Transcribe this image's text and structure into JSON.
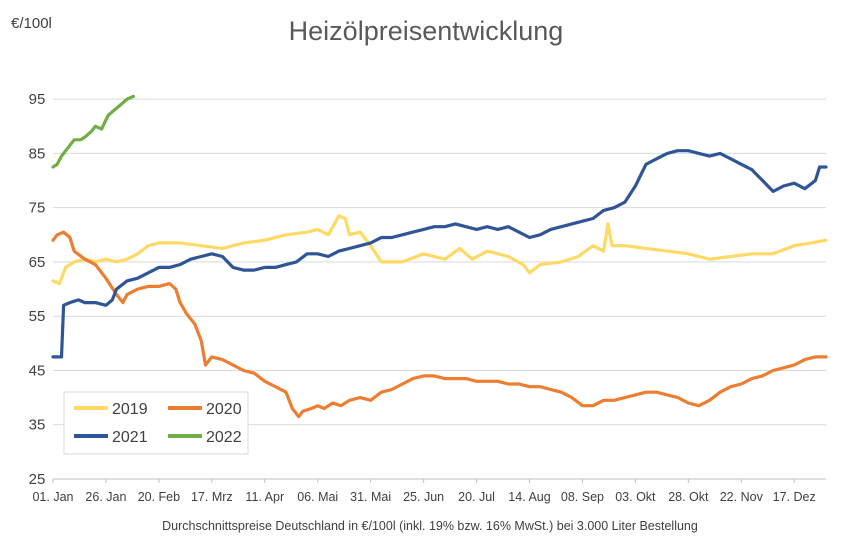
{
  "chart_data": {
    "type": "line",
    "title": "Heizölpreisentwicklung",
    "ylabel": "€/100l",
    "xlabel": "Durchschnittspreise Deutschland in €/100l (inkl. 19% bzw. 16%  MwSt.) bei 3.000 Liter Bestellung",
    "ylim": [
      25,
      100
    ],
    "yticks": [
      25,
      35,
      45,
      55,
      65,
      75,
      85,
      95
    ],
    "xlim": [
      0,
      365
    ],
    "xticks": [
      {
        "label": "01. Jan",
        "day": 0
      },
      {
        "label": "26. Jan",
        "day": 25
      },
      {
        "label": "20. Feb",
        "day": 50
      },
      {
        "label": "17. Mrz",
        "day": 75
      },
      {
        "label": "11. Apr",
        "day": 100
      },
      {
        "label": "06. Mai",
        "day": 125
      },
      {
        "label": "31. Mai",
        "day": 150
      },
      {
        "label": "25. Jun",
        "day": 175
      },
      {
        "label": "20. Jul",
        "day": 200
      },
      {
        "label": "14. Aug",
        "day": 225
      },
      {
        "label": "08. Sep",
        "day": 250
      },
      {
        "label": "03. Okt",
        "day": 275
      },
      {
        "label": "28. Okt",
        "day": 300
      },
      {
        "label": "22. Nov",
        "day": 325
      },
      {
        "label": "17. Dez",
        "day": 350
      }
    ],
    "grid": true,
    "legend": "bottom-left",
    "series": [
      {
        "name": "2019",
        "color": "#FFD966",
        "points": [
          [
            0,
            61.5
          ],
          [
            3,
            61
          ],
          [
            6,
            64
          ],
          [
            10,
            65
          ],
          [
            15,
            65.5
          ],
          [
            20,
            65
          ],
          [
            25,
            65.5
          ],
          [
            30,
            65
          ],
          [
            35,
            65.5
          ],
          [
            40,
            66.5
          ],
          [
            45,
            68
          ],
          [
            50,
            68.5
          ],
          [
            60,
            68.5
          ],
          [
            70,
            68
          ],
          [
            80,
            67.5
          ],
          [
            90,
            68.5
          ],
          [
            100,
            69
          ],
          [
            110,
            70
          ],
          [
            120,
            70.5
          ],
          [
            125,
            71
          ],
          [
            130,
            70
          ],
          [
            135,
            73.5
          ],
          [
            138,
            73
          ],
          [
            140,
            70
          ],
          [
            145,
            70.5
          ],
          [
            150,
            68
          ],
          [
            155,
            65
          ],
          [
            165,
            65
          ],
          [
            175,
            66.5
          ],
          [
            185,
            65.5
          ],
          [
            192,
            67.5
          ],
          [
            198,
            65.5
          ],
          [
            205,
            67
          ],
          [
            215,
            66
          ],
          [
            222,
            64.5
          ],
          [
            225,
            63
          ],
          [
            230,
            64.5
          ],
          [
            240,
            65
          ],
          [
            248,
            66
          ],
          [
            255,
            68
          ],
          [
            260,
            67
          ],
          [
            262,
            72
          ],
          [
            264,
            68
          ],
          [
            270,
            68
          ],
          [
            280,
            67.5
          ],
          [
            290,
            67
          ],
          [
            300,
            66.5
          ],
          [
            310,
            65.5
          ],
          [
            320,
            66
          ],
          [
            330,
            66.5
          ],
          [
            340,
            66.5
          ],
          [
            350,
            68
          ],
          [
            358,
            68.5
          ],
          [
            365,
            69
          ]
        ]
      },
      {
        "name": "2020",
        "color": "#ED7D31",
        "points": [
          [
            0,
            69
          ],
          [
            2,
            70
          ],
          [
            5,
            70.5
          ],
          [
            8,
            69.5
          ],
          [
            10,
            67
          ],
          [
            15,
            65.5
          ],
          [
            20,
            64.5
          ],
          [
            25,
            62
          ],
          [
            30,
            59
          ],
          [
            33,
            57.5
          ],
          [
            35,
            59
          ],
          [
            40,
            60
          ],
          [
            45,
            60.5
          ],
          [
            50,
            60.5
          ],
          [
            55,
            61
          ],
          [
            58,
            60
          ],
          [
            60,
            57.5
          ],
          [
            63,
            55.5
          ],
          [
            67,
            53.5
          ],
          [
            70,
            50.5
          ],
          [
            72,
            46
          ],
          [
            75,
            47.5
          ],
          [
            80,
            47
          ],
          [
            85,
            46
          ],
          [
            90,
            45
          ],
          [
            95,
            44.5
          ],
          [
            100,
            43
          ],
          [
            105,
            42
          ],
          [
            110,
            41
          ],
          [
            113,
            38
          ],
          [
            116,
            36.5
          ],
          [
            118,
            37.5
          ],
          [
            122,
            38
          ],
          [
            125,
            38.5
          ],
          [
            128,
            38
          ],
          [
            132,
            39
          ],
          [
            136,
            38.5
          ],
          [
            140,
            39.5
          ],
          [
            145,
            40
          ],
          [
            150,
            39.5
          ],
          [
            155,
            41
          ],
          [
            160,
            41.5
          ],
          [
            165,
            42.5
          ],
          [
            170,
            43.5
          ],
          [
            175,
            44
          ],
          [
            180,
            44
          ],
          [
            185,
            43.5
          ],
          [
            190,
            43.5
          ],
          [
            195,
            43.5
          ],
          [
            200,
            43
          ],
          [
            205,
            43
          ],
          [
            210,
            43
          ],
          [
            215,
            42.5
          ],
          [
            220,
            42.5
          ],
          [
            225,
            42
          ],
          [
            230,
            42
          ],
          [
            235,
            41.5
          ],
          [
            240,
            41
          ],
          [
            245,
            40
          ],
          [
            250,
            38.5
          ],
          [
            255,
            38.5
          ],
          [
            260,
            39.5
          ],
          [
            265,
            39.5
          ],
          [
            270,
            40
          ],
          [
            275,
            40.5
          ],
          [
            280,
            41
          ],
          [
            285,
            41
          ],
          [
            290,
            40.5
          ],
          [
            295,
            40
          ],
          [
            300,
            39
          ],
          [
            305,
            38.5
          ],
          [
            310,
            39.5
          ],
          [
            315,
            41
          ],
          [
            320,
            42
          ],
          [
            325,
            42.5
          ],
          [
            330,
            43.5
          ],
          [
            335,
            44
          ],
          [
            340,
            45
          ],
          [
            345,
            45.5
          ],
          [
            350,
            46
          ],
          [
            355,
            47
          ],
          [
            360,
            47.5
          ],
          [
            365,
            47.5
          ]
        ]
      },
      {
        "name": "2021",
        "color": "#2F5597",
        "points": [
          [
            0,
            47.5
          ],
          [
            4,
            47.5
          ],
          [
            5,
            57
          ],
          [
            8,
            57.5
          ],
          [
            12,
            58
          ],
          [
            15,
            57.5
          ],
          [
            20,
            57.5
          ],
          [
            25,
            57
          ],
          [
            28,
            58
          ],
          [
            30,
            60
          ],
          [
            35,
            61.5
          ],
          [
            40,
            62
          ],
          [
            45,
            63
          ],
          [
            50,
            64
          ],
          [
            55,
            64
          ],
          [
            60,
            64.5
          ],
          [
            65,
            65.5
          ],
          [
            70,
            66
          ],
          [
            75,
            66.5
          ],
          [
            80,
            66
          ],
          [
            85,
            64
          ],
          [
            90,
            63.5
          ],
          [
            95,
            63.5
          ],
          [
            100,
            64
          ],
          [
            105,
            64
          ],
          [
            110,
            64.5
          ],
          [
            115,
            65
          ],
          [
            120,
            66.5
          ],
          [
            125,
            66.5
          ],
          [
            130,
            66
          ],
          [
            135,
            67
          ],
          [
            140,
            67.5
          ],
          [
            145,
            68
          ],
          [
            150,
            68.5
          ],
          [
            155,
            69.5
          ],
          [
            160,
            69.5
          ],
          [
            165,
            70
          ],
          [
            170,
            70.5
          ],
          [
            175,
            71
          ],
          [
            180,
            71.5
          ],
          [
            185,
            71.5
          ],
          [
            190,
            72
          ],
          [
            195,
            71.5
          ],
          [
            200,
            71
          ],
          [
            205,
            71.5
          ],
          [
            210,
            71
          ],
          [
            215,
            71.5
          ],
          [
            220,
            70.5
          ],
          [
            225,
            69.5
          ],
          [
            230,
            70
          ],
          [
            235,
            71
          ],
          [
            240,
            71.5
          ],
          [
            245,
            72
          ],
          [
            250,
            72.5
          ],
          [
            255,
            73
          ],
          [
            260,
            74.5
          ],
          [
            265,
            75
          ],
          [
            270,
            76
          ],
          [
            275,
            79
          ],
          [
            280,
            83
          ],
          [
            285,
            84
          ],
          [
            290,
            85
          ],
          [
            295,
            85.5
          ],
          [
            300,
            85.5
          ],
          [
            305,
            85
          ],
          [
            310,
            84.5
          ],
          [
            315,
            85
          ],
          [
            320,
            84
          ],
          [
            325,
            83
          ],
          [
            330,
            82
          ],
          [
            335,
            80
          ],
          [
            340,
            78
          ],
          [
            345,
            79
          ],
          [
            350,
            79.5
          ],
          [
            355,
            78.5
          ],
          [
            360,
            80
          ],
          [
            362,
            82.5
          ],
          [
            365,
            82.5
          ]
        ]
      },
      {
        "name": "2022",
        "color": "#70AD47",
        "points": [
          [
            0,
            82.5
          ],
          [
            2,
            83
          ],
          [
            4,
            84.5
          ],
          [
            6,
            85.5
          ],
          [
            8,
            86.5
          ],
          [
            10,
            87.5
          ],
          [
            13,
            87.5
          ],
          [
            15,
            88
          ],
          [
            18,
            89
          ],
          [
            20,
            90
          ],
          [
            23,
            89.5
          ],
          [
            26,
            92
          ],
          [
            29,
            93
          ],
          [
            32,
            94
          ],
          [
            35,
            95
          ],
          [
            38,
            95.5
          ]
        ]
      }
    ]
  }
}
